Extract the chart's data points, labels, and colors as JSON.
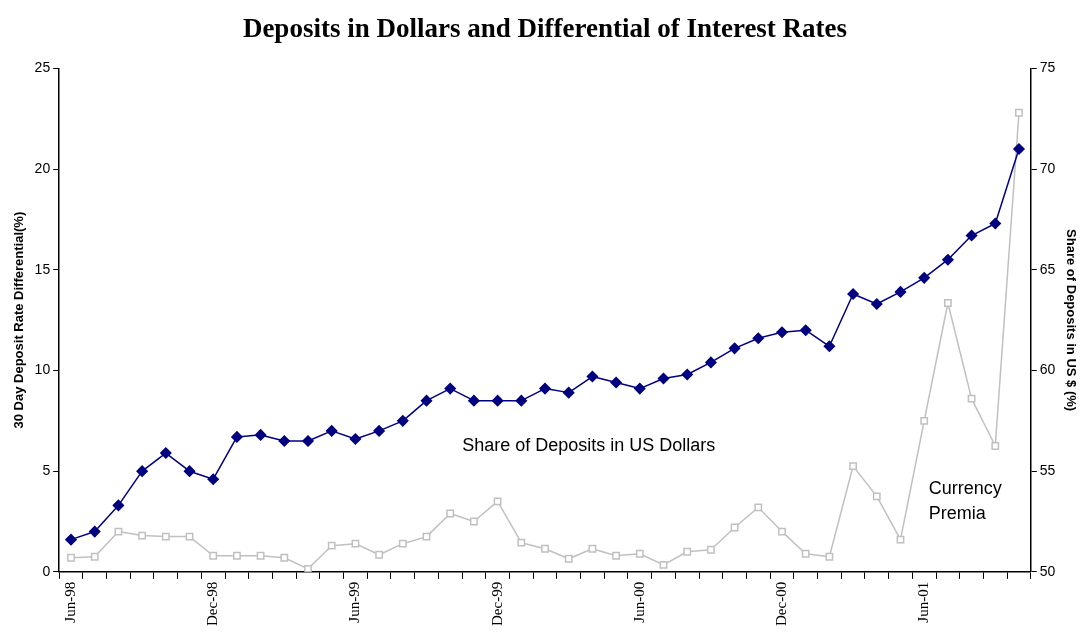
{
  "chart_data": {
    "type": "line",
    "title": "Deposits in Dollars and Differential of Interest Rates",
    "ylabel": "30 Day Deposit Rate Differential(%)",
    "y2label": "Share of Deposits in US $ (%)",
    "categories": [
      "Jun-98",
      null,
      null,
      null,
      null,
      null,
      "Dec-98",
      null,
      null,
      null,
      null,
      null,
      "Jun-99",
      null,
      null,
      null,
      null,
      null,
      "Dec-99",
      null,
      null,
      null,
      null,
      null,
      "Jun-00",
      null,
      null,
      null,
      null,
      null,
      "Dec-00",
      null,
      null,
      null,
      null,
      null,
      "Jun-01",
      null,
      null,
      null,
      null
    ],
    "series": [
      {
        "color": "#000080",
        "axis": "y2",
        "marker": "diamond",
        "values": [
          51.6,
          52.0,
          53.3,
          55.0,
          55.9,
          55.0,
          54.6,
          56.7,
          56.8,
          56.5,
          56.5,
          57.0,
          56.6,
          57.0,
          57.5,
          58.5,
          59.1,
          58.5,
          58.5,
          58.5,
          59.1,
          58.9,
          59.7,
          59.4,
          59.1,
          59.6,
          59.8,
          60.4,
          61.1,
          61.6,
          61.9,
          62.0,
          61.2,
          63.8,
          63.3,
          63.9,
          64.6,
          65.5,
          66.7,
          67.3,
          71.0
        ]
      },
      {
        "color": "#c0c0c0",
        "axis": "y",
        "marker": "square",
        "values": [
          0.7,
          0.75,
          2.0,
          1.8,
          1.75,
          1.75,
          0.8,
          0.8,
          0.8,
          0.7,
          0.15,
          1.3,
          1.4,
          0.85,
          1.4,
          1.75,
          2.9,
          2.5,
          3.5,
          1.45,
          1.15,
          0.65,
          1.15,
          0.8,
          0.9,
          0.35,
          1.0,
          1.1,
          2.2,
          3.2,
          2.0,
          0.9,
          0.75,
          5.25,
          3.75,
          1.6,
          7.5,
          13.35,
          8.6,
          6.25,
          22.8
        ]
      }
    ],
    "ylim": [
      0,
      25
    ],
    "yticks": [
      0,
      5,
      10,
      15,
      20,
      25
    ],
    "y2lim": [
      50,
      75
    ],
    "y2ticks": [
      50,
      55,
      60,
      65,
      70,
      75
    ],
    "annotations": [
      "Share of Deposits in US Dollars",
      "Currency Premia"
    ],
    "grid": false,
    "legend": false,
    "line_style": "solid"
  }
}
